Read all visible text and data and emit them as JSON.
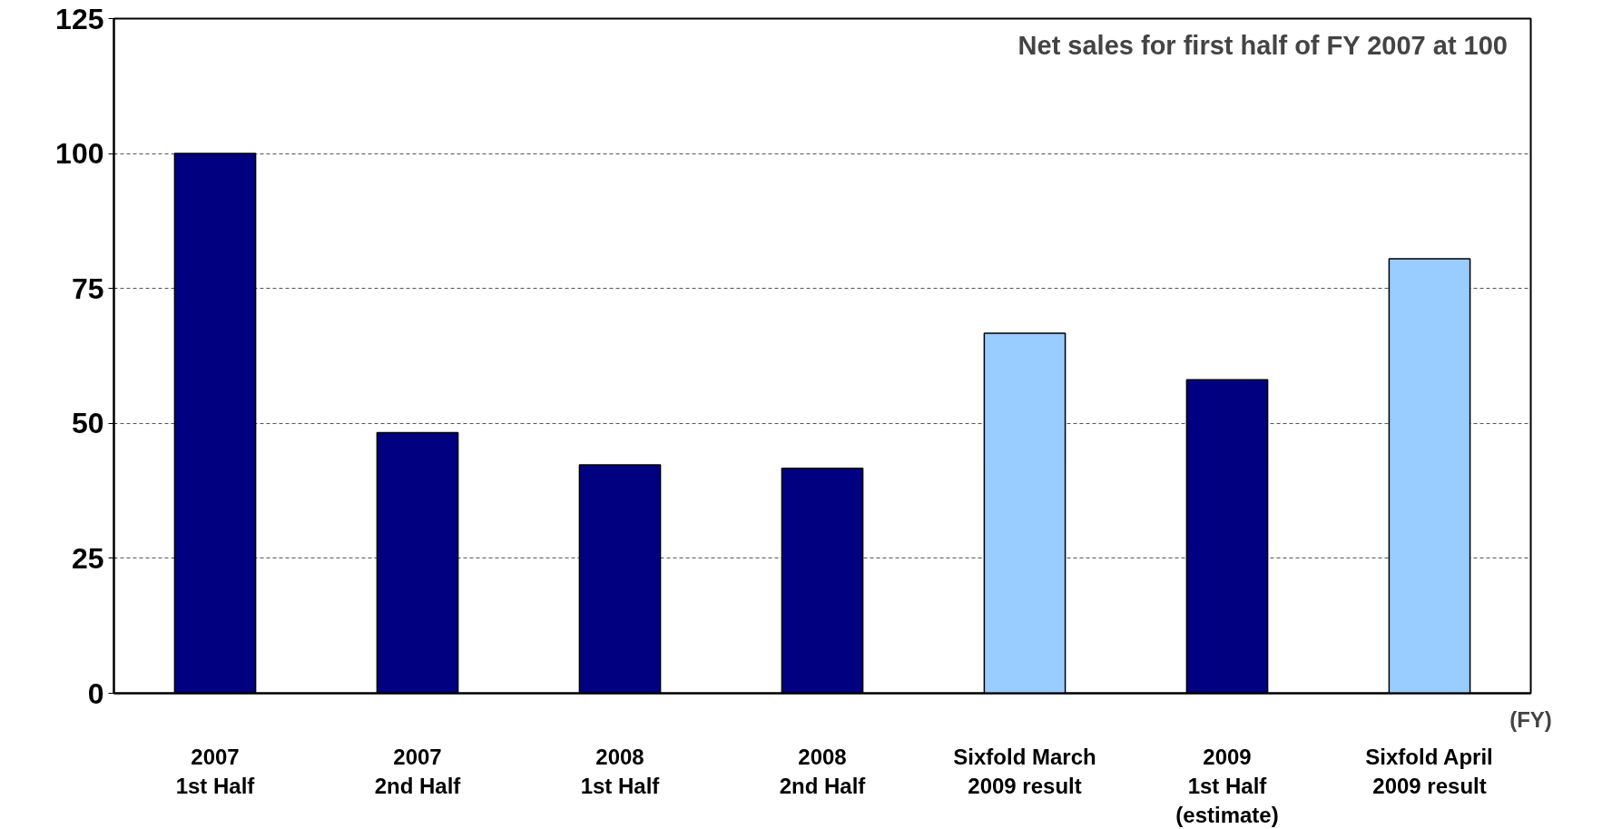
{
  "chart_data": {
    "type": "bar",
    "categories": [
      "2007\n1st Half",
      "2007\n2nd Half",
      "2008\n1st Half",
      "2008\n2nd Half",
      "Sixfold March\n2009 result",
      "2009\n1st Half\n(estimate)",
      "Sixfold April\n2009 result"
    ],
    "values": [
      100,
      48.3,
      42.3,
      41.7,
      66.7,
      58.1,
      80.5
    ],
    "colors": [
      "#000080",
      "#000080",
      "#000080",
      "#000080",
      "#99ccff",
      "#000080",
      "#99ccff"
    ],
    "xlabel": "(FY)",
    "ylim": [
      0,
      125
    ],
    "yticks": [
      0,
      25,
      50,
      75,
      100,
      125
    ],
    "grid": "y",
    "annotations": [
      "Net sales for first half of FY 2007 at 100"
    ]
  }
}
